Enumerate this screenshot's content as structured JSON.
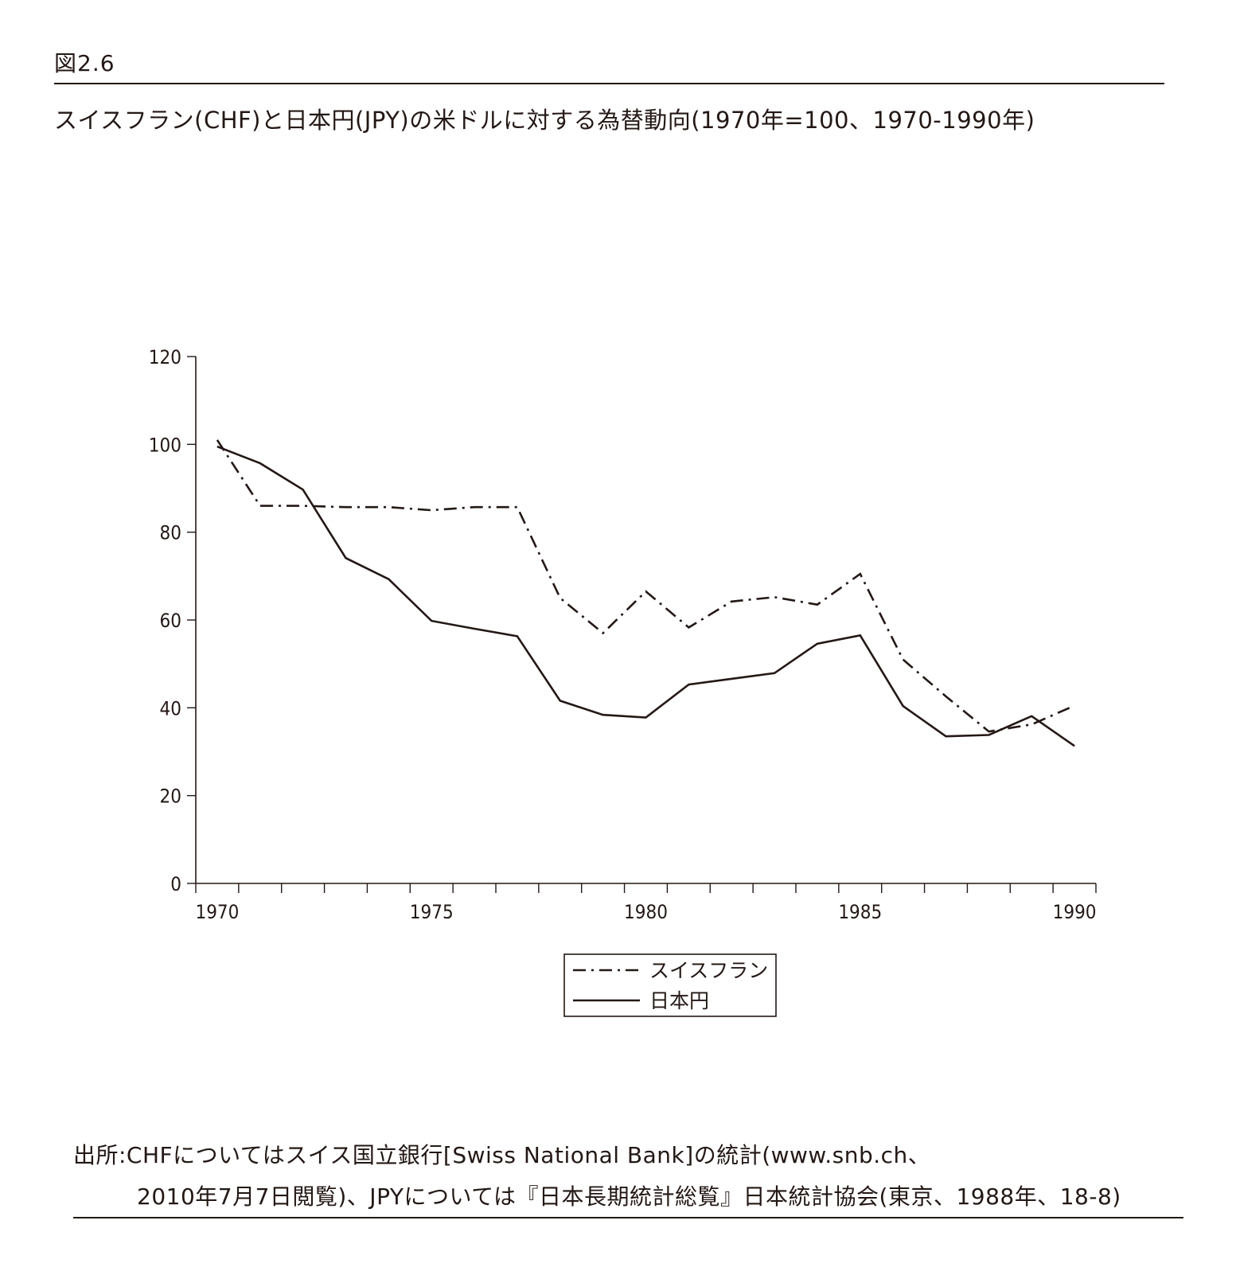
{
  "figure_label": "図2.6",
  "title": "スイスフラン(CHF)と日本円(JPY)の米ドルに対する為替動向(1970年=100、1970-1990年)",
  "source": {
    "line1": "出所:CHFについてはスイス国立銀行[Swiss National Bank]の統計(www.snb.ch、",
    "line2": "2010年7月7日閲覧)、JPYについては『日本長期統計総覧』日本統計協会(東京、1988年、18-8)"
  },
  "chart_data": {
    "type": "line",
    "title": "",
    "xlabel": "",
    "ylabel": "",
    "xlim": [
      1969.5,
      1990.5
    ],
    "ylim": [
      0,
      120
    ],
    "x_ticks": [
      1970,
      1975,
      1980,
      1985,
      1990
    ],
    "y_ticks": [
      0,
      20,
      40,
      60,
      80,
      100,
      120
    ],
    "grid": false,
    "legend_position": "bottom-center",
    "x": [
      1970,
      1971,
      1972,
      1973,
      1974,
      1975,
      1976,
      1977,
      1978,
      1979,
      1980,
      1981,
      1982,
      1983,
      1984,
      1985,
      1986,
      1987,
      1988,
      1989,
      1990
    ],
    "series": [
      {
        "name": "スイスフラン",
        "style": "dash-dot",
        "color": "#231815",
        "values": [
          101,
          86,
          86,
          85.7,
          85.7,
          85,
          85.7,
          85.7,
          65,
          57,
          66.5,
          58.3,
          64.2,
          65.2,
          63.5,
          70.5,
          51,
          42.6,
          34.6,
          36.2,
          40.5
        ]
      },
      {
        "name": "日本円",
        "style": "solid",
        "color": "#231815",
        "values": [
          99.5,
          95.7,
          89.7,
          74.1,
          69.3,
          59.8,
          58,
          56.3,
          41.6,
          38.4,
          37.8,
          45.3,
          46.6,
          47.9,
          54.6,
          56.5,
          40.4,
          33.5,
          33.8,
          38.1,
          31.3
        ]
      }
    ]
  }
}
